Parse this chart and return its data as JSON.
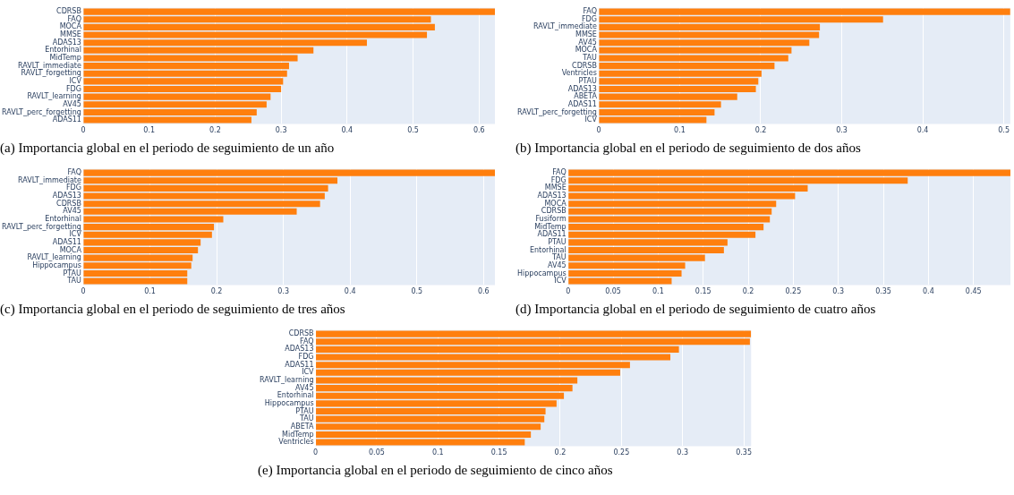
{
  "chart_data": [
    {
      "type": "bar",
      "orientation": "horizontal",
      "color": "#ff7f0e",
      "grid": "x",
      "xlim": [
        0,
        0.624
      ],
      "xticks": [
        0,
        0.1,
        0.2,
        0.3,
        0.4,
        0.5,
        0.6
      ],
      "categories": [
        "CDRSB",
        "FAQ",
        "MOCA",
        "MMSE",
        "ADAS13",
        "Entorhinal",
        "MidTemp",
        "RAVLT_immediate",
        "RAVLT_forgetting",
        "ICV",
        "FDG",
        "RAVLT_learning",
        "AV45",
        "RAVLT_perc_forgetting",
        "ADAS11"
      ],
      "values": [
        0.624,
        0.527,
        0.533,
        0.521,
        0.43,
        0.349,
        0.325,
        0.312,
        0.309,
        0.303,
        0.3,
        0.284,
        0.278,
        0.263,
        0.255
      ],
      "annotations": [
        "(a) Importancia global en el periodo de seguimiento de un año"
      ]
    },
    {
      "type": "bar",
      "orientation": "horizontal",
      "color": "#ff7f0e",
      "grid": "x",
      "xlim": [
        0,
        0.508
      ],
      "xticks": [
        0,
        0.1,
        0.2,
        0.3,
        0.4,
        0.5
      ],
      "categories": [
        "FAQ",
        "FDG",
        "RAVLT_immediate",
        "MMSE",
        "AV45",
        "MOCA",
        "TAU",
        "CDRSB",
        "Ventricles",
        "PTAU",
        "ADAS13",
        "ABETA",
        "ADAS11",
        "RAVLT_perc_forgetting",
        "ICV"
      ],
      "values": [
        0.508,
        0.351,
        0.273,
        0.272,
        0.26,
        0.238,
        0.234,
        0.217,
        0.201,
        0.197,
        0.194,
        0.171,
        0.151,
        0.143,
        0.133
      ],
      "annotations": [
        "(b) Importancia global en el periodo de seguimiento de dos años"
      ]
    },
    {
      "type": "bar",
      "orientation": "horizontal",
      "color": "#ff7f0e",
      "grid": "x",
      "xlim": [
        0,
        0.617
      ],
      "xticks": [
        0,
        0.1,
        0.2,
        0.3,
        0.4,
        0.5,
        0.6
      ],
      "categories": [
        "FAQ",
        "RAVLT_immediate",
        "FDG",
        "ADAS13",
        "CDRSB",
        "AV45",
        "Entorhinal",
        "RAVLT_perc_forgetting",
        "ICV",
        "ADAS11",
        "MOCA",
        "RAVLT_learning",
        "Hippocampus",
        "PTAU",
        "TAU"
      ],
      "values": [
        0.617,
        0.381,
        0.367,
        0.362,
        0.355,
        0.32,
        0.21,
        0.196,
        0.193,
        0.176,
        0.172,
        0.164,
        0.162,
        0.156,
        0.156
      ],
      "annotations": [
        "(c) Importancia global en el periodo de seguimiento de tres años"
      ]
    },
    {
      "type": "bar",
      "orientation": "horizontal",
      "color": "#ff7f0e",
      "grid": "x",
      "xlim": [
        0,
        0.491
      ],
      "xticks": [
        0,
        0.05,
        0.1,
        0.15,
        0.2,
        0.25,
        0.3,
        0.35,
        0.4,
        0.45
      ],
      "categories": [
        "FAQ",
        "FDG",
        "MMSE",
        "ADAS13",
        "MOCA",
        "CDRSB",
        "Fusiform",
        "MidTemp",
        "ADAS11",
        "PTAU",
        "Entorhinal",
        "TAU",
        "AV45",
        "Hippocampus",
        "ICV"
      ],
      "values": [
        0.491,
        0.377,
        0.266,
        0.252,
        0.231,
        0.226,
        0.224,
        0.217,
        0.208,
        0.177,
        0.173,
        0.152,
        0.13,
        0.126,
        0.115
      ],
      "annotations": [
        "(d) Importancia global en el periodo de seguimiento de cuatro años"
      ]
    },
    {
      "type": "bar",
      "orientation": "horizontal",
      "color": "#ff7f0e",
      "grid": "x",
      "xlim": [
        0,
        0.356
      ],
      "xticks": [
        0,
        0.05,
        0.1,
        0.15,
        0.2,
        0.25,
        0.3,
        0.35
      ],
      "categories": [
        "CDRSB",
        "FAQ",
        "ADAS13",
        "FDG",
        "ADAS11",
        "ICV",
        "RAVLT_learning",
        "AV45",
        "Entorhinal",
        "Hippocampus",
        "PTAU",
        "TAU",
        "ABETA",
        "MidTemp",
        "Ventricles"
      ],
      "values": [
        0.356,
        0.355,
        0.297,
        0.29,
        0.257,
        0.249,
        0.214,
        0.21,
        0.203,
        0.197,
        0.188,
        0.187,
        0.184,
        0.176,
        0.171
      ],
      "annotations": [
        "(e) Importancia global en el periodo de seguimiento de cinco años"
      ]
    }
  ]
}
